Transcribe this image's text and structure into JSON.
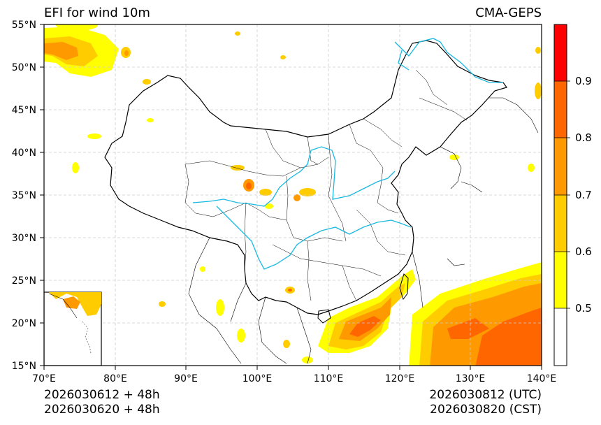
{
  "header": {
    "title_left": "EFI for wind 10m",
    "title_right": "CMA-GEPS"
  },
  "map": {
    "region": "East Asia / China",
    "lon_range": [
      70,
      140
    ],
    "lat_range": [
      15,
      55
    ],
    "lon_ticks": [
      "70°E",
      "80°E",
      "90°E",
      "100°E",
      "110°E",
      "120°E",
      "130°E",
      "140°E"
    ],
    "lat_ticks": [
      "55°N",
      "50°N",
      "45°N",
      "40°N",
      "35°N",
      "30°N",
      "25°N",
      "20°N",
      "15°N"
    ],
    "inset": "South China Sea islands"
  },
  "colorbar": {
    "levels": [
      0.4,
      0.5,
      0.6,
      0.7,
      0.8,
      0.9,
      1.0
    ],
    "tick_labels": [
      "0.5",
      "0.6",
      "0.7",
      "0.8",
      "0.9"
    ],
    "colors": [
      "#ffffff",
      "#ffff00",
      "#ffcc00",
      "#ff9900",
      "#ff6600",
      "#ff0000"
    ]
  },
  "footer": {
    "init_utc": "2026030612 + 48h",
    "init_cst": "2026030620 + 48h",
    "valid_utc": "2026030812 (UTC)",
    "valid_cst": "2026030820 (CST)"
  }
}
